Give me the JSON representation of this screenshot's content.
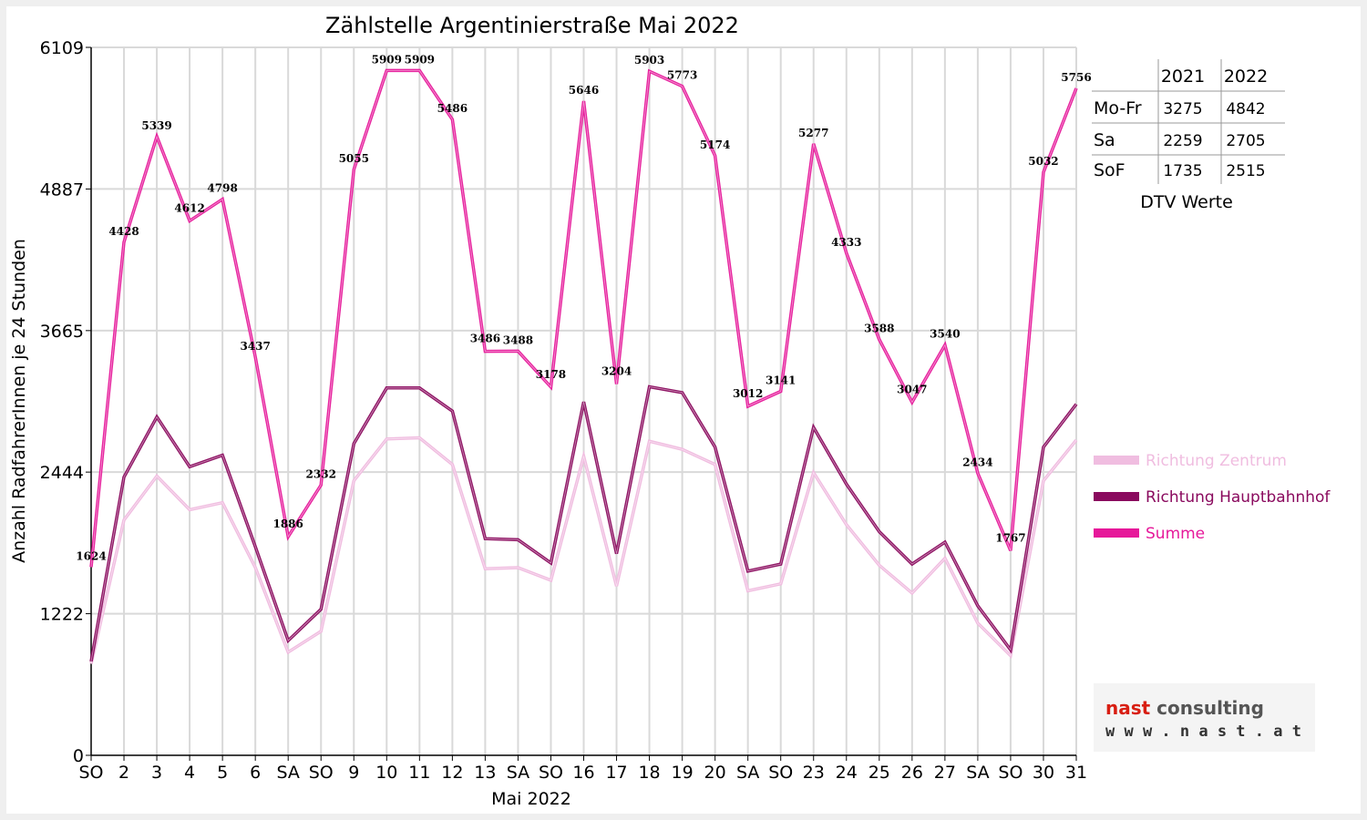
{
  "colors": {
    "zentrum": "#f0bde0",
    "hauptbahnhof": "#8a0a5e",
    "summe": "#e6189a",
    "weekend_tick": "#ff0000"
  },
  "chart_data": {
    "type": "line",
    "title": "Zählstelle Argentinierstraße Mai 2022",
    "xlabel": "Mai 2022",
    "ylabel": "Anzahl RadfahrerInnen je 24 Stunden",
    "ylim": [
      0,
      6109
    ],
    "yticks": [
      "0",
      "1222",
      "2444",
      "3665",
      "4887",
      "6109"
    ],
    "grid": true,
    "legend_position": "right",
    "categories": [
      "SO",
      "2",
      "3",
      "4",
      "5",
      "6",
      "SA",
      "SO",
      "9",
      "10",
      "11",
      "12",
      "13",
      "SA",
      "SO",
      "16",
      "17",
      "18",
      "19",
      "20",
      "SA",
      "SO",
      "23",
      "24",
      "25",
      "26",
      "27",
      "SA",
      "SO",
      "30",
      "31"
    ],
    "red_categories": [
      0,
      7,
      14,
      21,
      25,
      28
    ],
    "series": [
      {
        "name": "Richtung Zentrum",
        "values": [
          790,
          2030,
          2410,
          2120,
          2180,
          1620,
          890,
          1070,
          2370,
          2730,
          2740,
          2510,
          1610,
          1620,
          1510,
          2580,
          1460,
          2710,
          2640,
          2510,
          1420,
          1480,
          2440,
          1990,
          1640,
          1400,
          1700,
          1140,
          860,
          2370,
          2720
        ]
      },
      {
        "name": "Richtung Hauptbahnhof",
        "values": [
          810,
          2400,
          2920,
          2490,
          2590,
          1800,
          990,
          1260,
          2690,
          3170,
          3170,
          2970,
          1870,
          1860,
          1660,
          3050,
          1740,
          3180,
          3130,
          2660,
          1590,
          1650,
          2830,
          2340,
          1930,
          1650,
          1840,
          1290,
          910,
          2660,
          3030
        ]
      },
      {
        "name": "Summe",
        "values": [
          1624,
          4428,
          5339,
          4612,
          4798,
          3437,
          1886,
          2332,
          5055,
          5909,
          5909,
          5486,
          3486,
          3488,
          3178,
          5646,
          3204,
          5903,
          5773,
          5174,
          3012,
          3141,
          5277,
          4333,
          3588,
          3047,
          3540,
          2434,
          1767,
          5032,
          5756
        ],
        "labels": [
          "1624",
          "4428",
          "5339",
          "4612",
          "4798",
          "3437",
          "1886",
          "2332",
          "5055",
          "5909",
          "5909",
          "5486",
          "3486",
          "3488",
          "3178",
          "5646",
          "3204",
          "5903",
          "5773",
          "5174",
          "3012",
          "3141",
          "5277",
          "4333",
          "3588",
          "3047",
          "3540",
          "2434",
          "1767",
          "5032",
          "5756"
        ]
      }
    ]
  },
  "dtv_table": {
    "headers": [
      "",
      "2021",
      "2022"
    ],
    "rows": [
      {
        "label": "Mo-Fr",
        "v2021": "3275",
        "v2022": "4842"
      },
      {
        "label": "Sa",
        "v2021": "2259",
        "v2022": "2705"
      },
      {
        "label": "SoF",
        "v2021": "1735",
        "v2022": "2515"
      }
    ],
    "caption": "DTV Werte"
  },
  "logo": {
    "line1_a": "nast",
    "line1_b": " consulting",
    "line2": "w w w . n a s t . a t"
  }
}
